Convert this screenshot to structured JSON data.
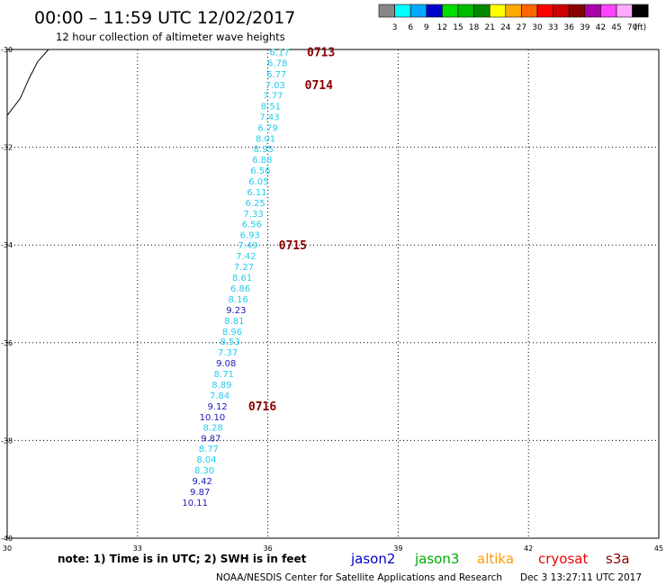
{
  "title": "00:00 – 11:59 UTC 12/02/2017",
  "subtitle": "12 hour collection of altimeter wave heights",
  "note": "note:  1) Time is in UTC;  2) SWH is in feet",
  "credit": "NOAA/NESDIS Center for Satellite Applications and Research",
  "timestamp": "Dec  3 13:27:11 UTC 2017",
  "colorbar": {
    "unit_label": "(ft)",
    "colors": [
      "#888888",
      "#00ffff",
      "#00aaff",
      "#0000cc",
      "#00dd00",
      "#00bb00",
      "#008800",
      "#ffff00",
      "#ffaa00",
      "#ff6600",
      "#ff0000",
      "#cc0000",
      "#880000",
      "#aa00aa",
      "#ff44ff",
      "#ffaaff",
      "#000000"
    ],
    "labels": [
      "3",
      "6",
      "9",
      "12",
      "15",
      "18",
      "21",
      "24",
      "27",
      "30",
      "33",
      "36",
      "39",
      "42",
      "45",
      "70"
    ]
  },
  "satellites": [
    {
      "name": "jason2",
      "color": "#0000cc"
    },
    {
      "name": "jason3",
      "color": "#00aa00"
    },
    {
      "name": "altika",
      "color": "#ff9900"
    },
    {
      "name": "cryosat",
      "color": "#ee0000"
    },
    {
      "name": "s3a",
      "color": "#880000"
    }
  ],
  "chart_data": {
    "type": "scatter",
    "xlim": [
      30,
      45
    ],
    "ylim": [
      -40,
      -30
    ],
    "x_ticks": [
      "30",
      "33",
      "36",
      "39",
      "42",
      "45"
    ],
    "y_ticks": [
      "-30",
      "-32",
      "-34",
      "-36",
      "-38",
      "-40"
    ],
    "grid": true,
    "series": [
      {
        "name": "jason2",
        "points": [
          {
            "x": 36.5,
            "y": -30.05,
            "label": "6.17",
            "color": "#22ccee"
          },
          {
            "x": 36.45,
            "y": -30.27,
            "label": "6.78",
            "color": "#22ccee"
          },
          {
            "x": 36.43,
            "y": -30.5,
            "label": "6.77",
            "color": "#22ccee"
          },
          {
            "x": 36.4,
            "y": -30.72,
            "label": "7.03",
            "color": "#22ccee"
          },
          {
            "x": 36.35,
            "y": -30.93,
            "label": "7.77",
            "color": "#22ccee"
          },
          {
            "x": 36.3,
            "y": -31.15,
            "label": "8.51",
            "color": "#22ccee"
          },
          {
            "x": 36.27,
            "y": -31.37,
            "label": "7.43",
            "color": "#22ccee"
          },
          {
            "x": 36.23,
            "y": -31.59,
            "label": "6.79",
            "color": "#22ccee"
          },
          {
            "x": 36.18,
            "y": -31.81,
            "label": "8.01",
            "color": "#22ccee"
          },
          {
            "x": 36.13,
            "y": -32.03,
            "label": "8.95",
            "color": "#22ccee"
          },
          {
            "x": 36.1,
            "y": -32.25,
            "label": "6.88",
            "color": "#22ccee"
          },
          {
            "x": 36.06,
            "y": -32.47,
            "label": "6.56",
            "color": "#22ccee"
          },
          {
            "x": 36.02,
            "y": -32.69,
            "label": "6.05",
            "color": "#22ccee"
          },
          {
            "x": 35.98,
            "y": -32.91,
            "label": "6.11",
            "color": "#22ccee"
          },
          {
            "x": 35.94,
            "y": -33.13,
            "label": "6.25",
            "color": "#22ccee"
          },
          {
            "x": 35.9,
            "y": -33.35,
            "label": "7.33",
            "color": "#22ccee"
          },
          {
            "x": 35.86,
            "y": -33.56,
            "label": "6.56",
            "color": "#22ccee"
          },
          {
            "x": 35.82,
            "y": -33.78,
            "label": "6.93",
            "color": "#22ccee"
          },
          {
            "x": 35.77,
            "y": -34.0,
            "label": "7.49",
            "color": "#22ccee"
          },
          {
            "x": 35.73,
            "y": -34.22,
            "label": "7.42",
            "color": "#22ccee"
          },
          {
            "x": 35.68,
            "y": -34.44,
            "label": "7.27",
            "color": "#22ccee"
          },
          {
            "x": 35.64,
            "y": -34.66,
            "label": "8.61",
            "color": "#22ccee"
          },
          {
            "x": 35.6,
            "y": -34.88,
            "label": "6.86",
            "color": "#22ccee"
          },
          {
            "x": 35.55,
            "y": -35.1,
            "label": "8.16",
            "color": "#22ccee"
          },
          {
            "x": 35.5,
            "y": -35.32,
            "label": "9.23",
            "color": "#1a1ab8"
          },
          {
            "x": 35.46,
            "y": -35.54,
            "label": "8.81",
            "color": "#22ccee"
          },
          {
            "x": 35.41,
            "y": -35.76,
            "label": "8.96",
            "color": "#22ccee"
          },
          {
            "x": 35.36,
            "y": -35.97,
            "label": "8.53",
            "color": "#22ccee"
          },
          {
            "x": 35.31,
            "y": -36.19,
            "label": "7.37",
            "color": "#22ccee"
          },
          {
            "x": 35.27,
            "y": -36.41,
            "label": "9.08",
            "color": "#1a1ab8"
          },
          {
            "x": 35.22,
            "y": -36.63,
            "label": "8.71",
            "color": "#22ccee"
          },
          {
            "x": 35.17,
            "y": -36.85,
            "label": "8.89",
            "color": "#22ccee"
          },
          {
            "x": 35.12,
            "y": -37.07,
            "label": "7.84",
            "color": "#22ccee"
          },
          {
            "x": 35.07,
            "y": -37.29,
            "label": "9.12",
            "color": "#1a1ab8"
          },
          {
            "x": 35.02,
            "y": -37.51,
            "label": "10.10",
            "color": "#1a1ab8"
          },
          {
            "x": 34.97,
            "y": -37.73,
            "label": "8.28",
            "color": "#22ccee"
          },
          {
            "x": 34.92,
            "y": -37.95,
            "label": "9.87",
            "color": "#1a1ab8"
          },
          {
            "x": 34.87,
            "y": -38.16,
            "label": "8.77",
            "color": "#22ccee"
          },
          {
            "x": 34.82,
            "y": -38.38,
            "label": "8.04",
            "color": "#22ccee"
          },
          {
            "x": 34.77,
            "y": -38.6,
            "label": "8.30",
            "color": "#22ccee"
          },
          {
            "x": 34.72,
            "y": -38.82,
            "label": "9.42",
            "color": "#1a1ab8"
          },
          {
            "x": 34.67,
            "y": -39.04,
            "label": "9.87",
            "color": "#1a1ab8"
          },
          {
            "x": 34.62,
            "y": -39.26,
            "label": "10.11",
            "color": "#1a1ab8"
          }
        ]
      }
    ],
    "time_annotations": [
      {
        "x": 36.9,
        "y": -30.05,
        "label": "0713"
      },
      {
        "x": 36.85,
        "y": -30.72,
        "label": "0714"
      },
      {
        "x": 36.25,
        "y": -34.0,
        "label": "0715"
      },
      {
        "x": 35.55,
        "y": -37.29,
        "label": "0716"
      }
    ],
    "annotation_color": "#880000",
    "coastline": [
      [
        30.0,
        -31.35
      ],
      [
        30.3,
        -31.0
      ],
      [
        30.5,
        -30.6
      ],
      [
        30.7,
        -30.25
      ],
      [
        30.95,
        -30.0
      ]
    ]
  }
}
